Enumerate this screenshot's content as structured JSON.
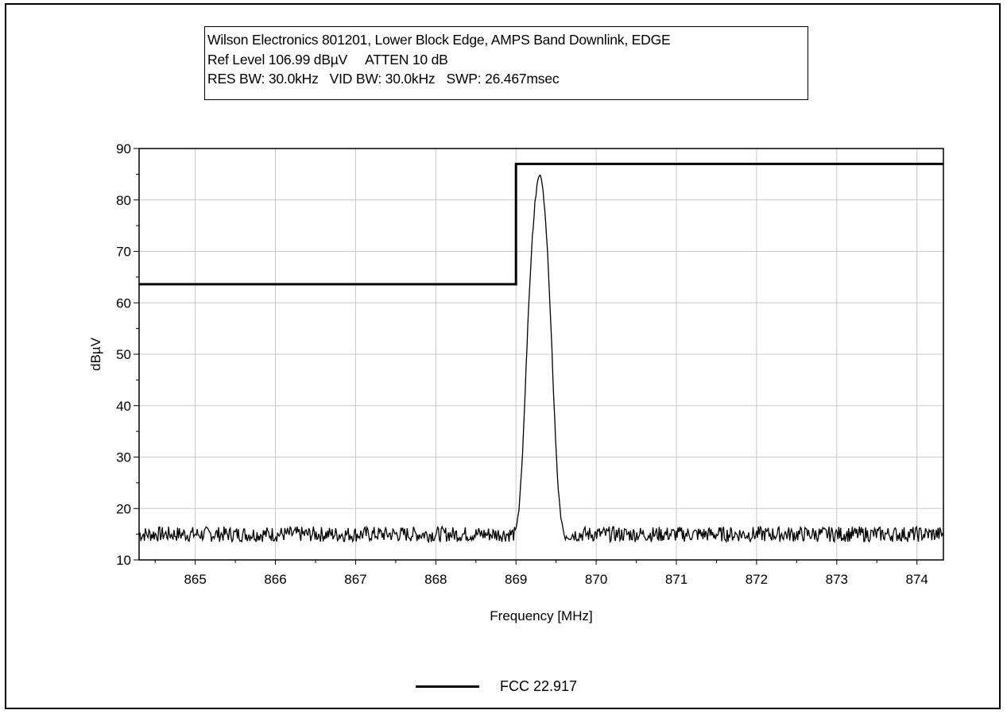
{
  "header": {
    "line1": "Wilson Electronics 801201, Lower Block Edge, AMPS Band Downlink, EDGE",
    "ref_level": "Ref Level 106.99 dBµV",
    "atten": "ATTEN 10 dB",
    "res_bw": "RES BW: 30.0kHz",
    "vid_bw": "VID BW: 30.0kHz",
    "swp": "SWP: 26.467msec"
  },
  "chart_data": {
    "type": "line",
    "xlabel": "Frequency [MHz]",
    "ylabel": "dBµV",
    "xlim": [
      864.3,
      874.33
    ],
    "ylim": [
      10,
      90
    ],
    "x_ticks": [
      865,
      866,
      867,
      868,
      869,
      870,
      871,
      872,
      873,
      874
    ],
    "y_ticks": [
      10,
      20,
      30,
      40,
      50,
      60,
      70,
      80,
      90
    ],
    "grid": true,
    "legend_position": "bottom-center",
    "series": [
      {
        "name": "FCC 22.917",
        "role": "limit",
        "x": [
          864.3,
          869.0,
          869.0,
          874.33
        ],
        "y": [
          63.6,
          63.6,
          87.0,
          87.0
        ]
      },
      {
        "role": "measured-trace",
        "noise_floor": 15,
        "noise_amplitude": 1.5,
        "peak_frequency": 869.3,
        "peak_level": 85,
        "peak_points": {
          "x": [
            869.0,
            869.04,
            869.08,
            869.12,
            869.16,
            869.2,
            869.24,
            869.27,
            869.3,
            869.33,
            869.36,
            869.4,
            869.44,
            869.48,
            869.52,
            869.56,
            869.6
          ],
          "y": [
            16,
            20,
            30,
            45,
            60,
            72,
            80,
            84,
            85,
            83,
            78,
            68,
            54,
            38,
            25,
            18,
            15
          ]
        }
      }
    ]
  }
}
